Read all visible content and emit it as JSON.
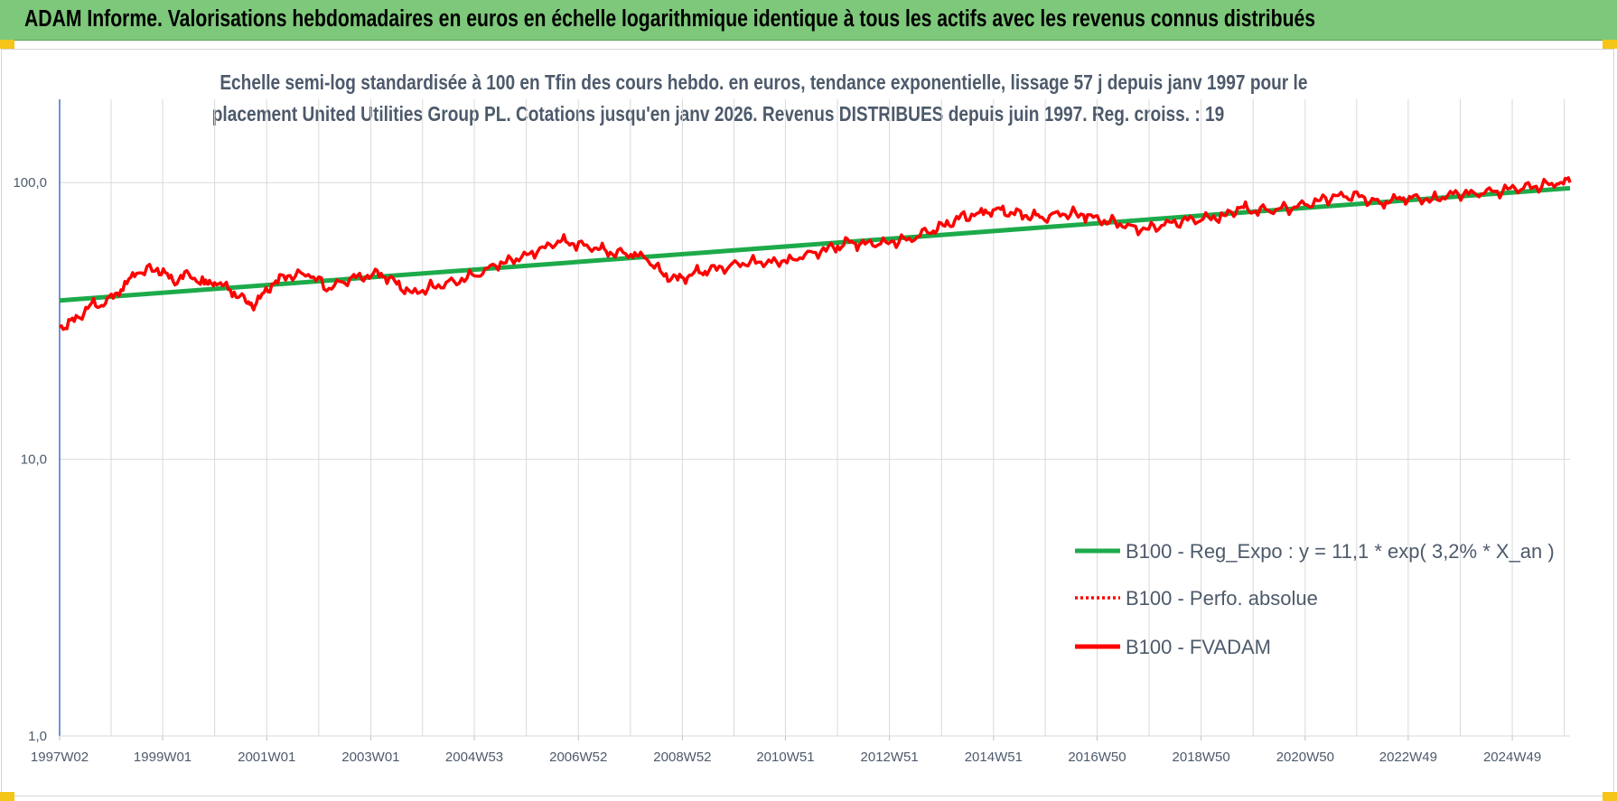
{
  "header": {
    "title": "ADAM Informe. Valorisations hebdomadaires en euros en échelle logarithmique identique à tous les actifs avec les revenus connus distribués"
  },
  "chart_data": {
    "type": "line",
    "title_lines": [
      "Echelle semi-log standardisée à 100 en Tfin des cours hebdo. en euros, tendance exponentielle, lissage 57 j depuis janv 1997 pour le",
      "placement United Utilities Group PL. Cotations jusqu'en janv 2026. Revenus DISTRIBUES depuis juin 1997. Reg. croiss. : 19"
    ],
    "y_scale": "log",
    "ylim": [
      1,
      200
    ],
    "y_ticks": [
      {
        "value": 1,
        "label": "1,0"
      },
      {
        "value": 10,
        "label": "10,0"
      },
      {
        "value": 100,
        "label": "100,0"
      }
    ],
    "x_range": [
      1997.02,
      2026.05
    ],
    "x_ticks": [
      {
        "year": 1997.02,
        "label": "1997W02"
      },
      {
        "year": 1999.0,
        "label": "1999W01"
      },
      {
        "year": 2001.0,
        "label": "2001W01"
      },
      {
        "year": 2003.0,
        "label": "2003W01"
      },
      {
        "year": 2004.99,
        "label": "2004W53"
      },
      {
        "year": 2006.99,
        "label": "2006W52"
      },
      {
        "year": 2008.99,
        "label": "2008W52"
      },
      {
        "year": 2010.97,
        "label": "2010W51"
      },
      {
        "year": 2012.97,
        "label": "2012W51"
      },
      {
        "year": 2014.97,
        "label": "2014W51"
      },
      {
        "year": 2016.96,
        "label": "2016W50"
      },
      {
        "year": 2018.96,
        "label": "2018W50"
      },
      {
        "year": 2020.96,
        "label": "2020W50"
      },
      {
        "year": 2022.94,
        "label": "2022W49"
      },
      {
        "year": 2024.94,
        "label": "2024W49"
      }
    ],
    "legend_position": "bottom-right",
    "series": [
      {
        "name": "B100 - Reg_Expo : y = 11,1 * exp( 3,2% *  X_an )",
        "style": "solid",
        "color": "#1daa4a",
        "x": [
          1997.02,
          2026.05
        ],
        "y": [
          37.5,
          95.5
        ]
      },
      {
        "name": "B100 - Perfo. absolue",
        "style": "dotted",
        "color": "#ff0000",
        "x": [],
        "y": []
      },
      {
        "name": "B100 - FVADAM",
        "style": "solid",
        "color": "#ff0000",
        "x": [
          1997.02,
          1997.3,
          1997.6,
          1997.9,
          1998.2,
          1998.5,
          1998.9,
          1999.2,
          1999.5,
          1999.8,
          2000.0,
          2000.3,
          2000.6,
          2000.8,
          2001.1,
          2001.4,
          2001.8,
          2002.2,
          2002.6,
          2002.9,
          2003.2,
          2003.5,
          2003.8,
          2004.2,
          2004.6,
          2005.0,
          2005.4,
          2005.8,
          2006.2,
          2006.6,
          2006.9,
          2007.3,
          2007.6,
          2008.0,
          2008.3,
          2008.6,
          2008.9,
          2009.2,
          2009.5,
          2009.9,
          2010.3,
          2010.7,
          2011.1,
          2011.5,
          2011.9,
          2012.2,
          2012.5,
          2012.9,
          2013.3,
          2013.7,
          2014.0,
          2014.3,
          2014.7,
          2015.0,
          2015.3,
          2015.6,
          2015.9,
          2016.3,
          2016.7,
          2017.0,
          2017.4,
          2017.8,
          2018.2,
          2018.6,
          2019.0,
          2019.4,
          2019.7,
          2020.0,
          2020.4,
          2020.8,
          2021.2,
          2021.6,
          2022.0,
          2022.4,
          2022.7,
          2023.0,
          2023.4,
          2023.8,
          2024.2,
          2024.6,
          2025.0,
          2025.4,
          2025.8,
          2026.05
        ],
        "y": [
          30,
          31.5,
          36,
          36.5,
          41,
          47,
          49,
          44,
          47,
          43,
          43.5,
          41,
          37,
          36.5,
          43,
          46,
          46.5,
          41.5,
          45,
          45.5,
          47,
          43,
          40,
          42,
          44,
          46,
          50,
          53,
          56,
          61.5,
          60,
          58,
          56,
          55,
          53,
          47,
          44.5,
          47,
          48,
          50,
          52,
          51.5,
          53,
          56,
          58,
          61,
          60,
          61,
          62,
          66,
          70,
          74,
          78,
          80,
          78,
          76,
          75,
          77,
          76.5,
          73,
          71,
          67,
          70,
          73,
          74,
          76,
          81,
          79,
          80,
          81.5,
          86,
          90,
          89,
          84,
          88,
          88,
          87,
          91,
          92,
          93,
          95,
          97,
          99,
          100
        ]
      }
    ]
  }
}
